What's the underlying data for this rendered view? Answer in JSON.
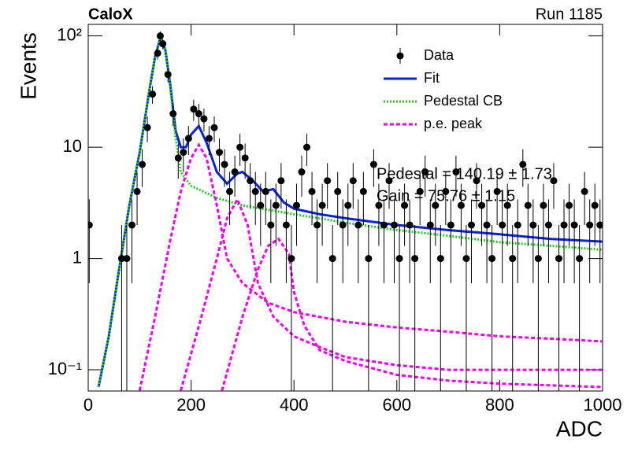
{
  "chart_data": {
    "type": "line",
    "title": "CaloX",
    "subtitle": "Run 1185",
    "x_label": "ADC",
    "y_label": "Events",
    "ylog": true,
    "legend": "upper-right",
    "xlim": [
      0,
      1000
    ],
    "xticks": [
      0,
      200,
      400,
      600,
      800,
      1000
    ],
    "ylim": [
      0.0645,
      127
    ],
    "yticks": [
      {
        "value": 0.1,
        "label": "10⁻¹"
      },
      1,
      10,
      {
        "value": 100,
        "label": "10²"
      }
    ],
    "annotations": [
      "Pedestal = 140.19 ± 1.73",
      "Gain = 75.76 ± 1.15"
    ],
    "series": [
      {
        "name": "Data",
        "type": "scatter",
        "color": "#000000",
        "x": [
          2,
          65,
          75,
          85,
          95,
          105,
          115,
          125,
          135,
          140,
          145,
          155,
          165,
          175,
          185,
          195,
          205,
          215,
          225,
          235,
          245,
          255,
          265,
          275,
          285,
          295,
          305,
          315,
          325,
          335,
          345,
          355,
          365,
          375,
          385,
          395,
          405,
          415,
          425,
          435,
          445,
          455,
          465,
          475,
          485,
          495,
          505,
          515,
          525,
          535,
          545,
          555,
          565,
          575,
          585,
          595,
          605,
          615,
          625,
          635,
          645,
          655,
          665,
          675,
          685,
          695,
          705,
          715,
          725,
          735,
          745,
          755,
          765,
          775,
          785,
          795,
          805,
          815,
          825,
          835,
          845,
          855,
          865,
          875,
          885,
          895,
          905,
          915,
          925,
          935,
          945,
          955,
          965,
          975,
          985,
          995
        ],
        "values": [
          2,
          1,
          1,
          2,
          4,
          7,
          15,
          30,
          70,
          100,
          85,
          45,
          20,
          8,
          9,
          12,
          22,
          20,
          18,
          12,
          15,
          9,
          7,
          4,
          6,
          10,
          8,
          5,
          4,
          3,
          4,
          2,
          3,
          5,
          2,
          1,
          3,
          6,
          10,
          4,
          2,
          3,
          5,
          1,
          4,
          2,
          3,
          5,
          2,
          4,
          1,
          7,
          3,
          2,
          5,
          2,
          1,
          3,
          2,
          1,
          4,
          6,
          2,
          3,
          1,
          4,
          2,
          6,
          3,
          1,
          2,
          5,
          3,
          2,
          1,
          4,
          2,
          3,
          1,
          2,
          7,
          3,
          2,
          1,
          3,
          2,
          5,
          1,
          2,
          3,
          2,
          1,
          4,
          2,
          3,
          2
        ],
        "errors": [
          1.4,
          1,
          1,
          1.4,
          2,
          2.6,
          3.9,
          5.5,
          8.4,
          10,
          9.2,
          6.7,
          4.5,
          2.8,
          3,
          3.5,
          4.7,
          4.5,
          4.2,
          3.5,
          3.9,
          3,
          2.6,
          2,
          2.4,
          3.2,
          2.8,
          2.2,
          2,
          1.7,
          2,
          1.4,
          1.7,
          2.2,
          1.4,
          1,
          1.7,
          2.4,
          3.2,
          2,
          1.4,
          1.7,
          2.2,
          1,
          2,
          1.4,
          1.7,
          2.2,
          1.4,
          2,
          1,
          2.6,
          1.7,
          1.4,
          2.2,
          1.4,
          1,
          1.7,
          1.4,
          1,
          2,
          2.4,
          1.4,
          1.7,
          1,
          2,
          1.4,
          2.4,
          1.7,
          1,
          1.4,
          2.2,
          1.7,
          1.4,
          1,
          2,
          1.4,
          1.7,
          1,
          1.4,
          2.6,
          1.7,
          1.4,
          1,
          1.7,
          1.4,
          2.2,
          1,
          1.4,
          1.7,
          1.4,
          1,
          2,
          1.4,
          1.7,
          1.4
        ]
      },
      {
        "name": "Fit",
        "type": "line",
        "color": "#0022dd",
        "dash": "none",
        "x": [
          20,
          40,
          60,
          80,
          100,
          120,
          130,
          140,
          150,
          160,
          170,
          180,
          190,
          200,
          215,
          230,
          250,
          270,
          290,
          300,
          320,
          340,
          360,
          380,
          400,
          450,
          500,
          600,
          700,
          800,
          900,
          1000
        ],
        "values": [
          0.07,
          0.2,
          0.8,
          3,
          9,
          35,
          65,
          95,
          75,
          35,
          14,
          10,
          10,
          13,
          15.5,
          11,
          6,
          4.7,
          5.8,
          6,
          5,
          4,
          4.2,
          3.2,
          2.8,
          2.5,
          2.3,
          2,
          1.8,
          1.65,
          1.5,
          1.42
        ]
      },
      {
        "name": "Pedestal CB",
        "type": "line",
        "color": "#22cc22",
        "dash": "2 2",
        "x": [
          20,
          40,
          60,
          80,
          100,
          120,
          130,
          140,
          150,
          160,
          170,
          180,
          200,
          250,
          300,
          400,
          500,
          600,
          700,
          800,
          900,
          1000
        ],
        "values": [
          0.07,
          0.2,
          0.8,
          3,
          9,
          35,
          65,
          95,
          75,
          33,
          12,
          6,
          4.5,
          3.5,
          3,
          2.5,
          2.1,
          1.8,
          1.6,
          1.4,
          1.3,
          1.2
        ]
      },
      {
        "name": "p.e. peak",
        "type": "line",
        "color": "#ee00ee",
        "dash": "5 3",
        "x": [
          100,
          130,
          160,
          180,
          200,
          215,
          230,
          250,
          270,
          300,
          350,
          400,
          500,
          600,
          700,
          800,
          900,
          1000
        ],
        "values": [
          0.065,
          0.3,
          1.5,
          4,
          8,
          10.5,
          8,
          3,
          1,
          0.6,
          0.4,
          0.33,
          0.27,
          0.24,
          0.22,
          0.2,
          0.19,
          0.18
        ]
      },
      {
        "type": "line",
        "color": "#ee00ee",
        "dash": "5 3",
        "x": [
          180,
          220,
          250,
          270,
          290,
          310,
          330,
          360,
          400,
          450,
          500,
          600,
          700,
          800,
          1000
        ],
        "values": [
          0.065,
          0.3,
          1,
          2.3,
          3.4,
          2,
          0.6,
          0.3,
          0.2,
          0.16,
          0.13,
          0.11,
          0.1,
          0.1,
          0.1
        ]
      },
      {
        "type": "line",
        "color": "#ee00ee",
        "dash": "5 3",
        "x": [
          260,
          300,
          330,
          350,
          370,
          390,
          400,
          420,
          450,
          500,
          600,
          700,
          800,
          1000
        ],
        "values": [
          0.065,
          0.3,
          0.8,
          1.3,
          1.5,
          1.1,
          0.5,
          0.25,
          0.15,
          0.12,
          0.09,
          0.08,
          0.075,
          0.07
        ]
      }
    ]
  }
}
